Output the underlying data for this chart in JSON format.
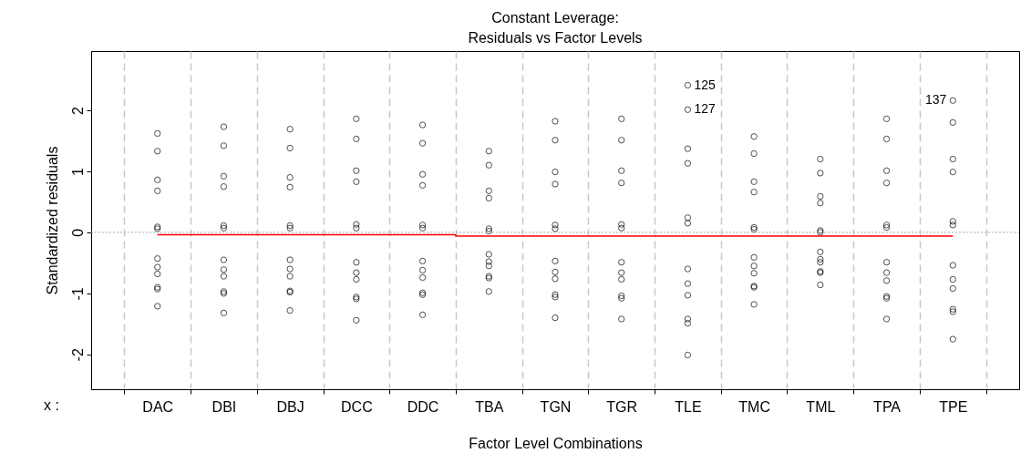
{
  "chart_data": {
    "type": "scatter",
    "title": "Constant Leverage:",
    "subtitle": "Residuals vs Factor Levels",
    "xlabel": "Factor Level Combinations",
    "ylabel": "Standardized residuals",
    "categories": [
      "DAC",
      "DBI",
      "DBJ",
      "DCC",
      "DDC",
      "TBA",
      "TGN",
      "TGR",
      "TLE",
      "TMC",
      "TML",
      "TPA",
      "TPE"
    ],
    "ylim": [
      -2.57,
      2.97
    ],
    "yticks": [
      -2,
      -1,
      0,
      1,
      2
    ],
    "grid": "x",
    "series": [
      {
        "color": "#000000",
        "marker": "circle",
        "x": [
          "DAC",
          "DAC",
          "DAC",
          "DAC",
          "DAC",
          "DAC",
          "DAC",
          "DAC",
          "DAC",
          "DAC",
          "DAC",
          "DAC",
          "DBI",
          "DBI",
          "DBI",
          "DBI",
          "DBI",
          "DBI",
          "DBI",
          "DBI",
          "DBI",
          "DBI",
          "DBI",
          "DBI",
          "DBJ",
          "DBJ",
          "DBJ",
          "DBJ",
          "DBJ",
          "DBJ",
          "DBJ",
          "DBJ",
          "DBJ",
          "DBJ",
          "DBJ",
          "DBJ",
          "DCC",
          "DCC",
          "DCC",
          "DCC",
          "DCC",
          "DCC",
          "DCC",
          "DCC",
          "DCC",
          "DCC",
          "DCC",
          "DCC",
          "DDC",
          "DDC",
          "DDC",
          "DDC",
          "DDC",
          "DDC",
          "DDC",
          "DDC",
          "DDC",
          "DDC",
          "DDC",
          "DDC",
          "TBA",
          "TBA",
          "TBA",
          "TBA",
          "TBA",
          "TBA",
          "TBA",
          "TBA",
          "TBA",
          "TBA",
          "TBA",
          "TBA",
          "TGN",
          "TGN",
          "TGN",
          "TGN",
          "TGN",
          "TGN",
          "TGN",
          "TGN",
          "TGN",
          "TGN",
          "TGN",
          "TGN",
          "TGR",
          "TGR",
          "TGR",
          "TGR",
          "TGR",
          "TGR",
          "TGR",
          "TGR",
          "TGR",
          "TGR",
          "TGR",
          "TGR",
          "TLE",
          "TLE",
          "TLE",
          "TLE",
          "TLE",
          "TLE",
          "TLE",
          "TLE",
          "TLE",
          "TLE",
          "TLE",
          "TLE",
          "TMC",
          "TMC",
          "TMC",
          "TMC",
          "TMC",
          "TMC",
          "TMC",
          "TMC",
          "TMC",
          "TMC",
          "TMC",
          "TMC",
          "TML",
          "TML",
          "TML",
          "TML",
          "TML",
          "TML",
          "TML",
          "TML",
          "TML",
          "TML",
          "TML",
          "TML",
          "TPA",
          "TPA",
          "TPA",
          "TPA",
          "TPA",
          "TPA",
          "TPA",
          "TPA",
          "TPA",
          "TPA",
          "TPA",
          "TPA",
          "TPE",
          "TPE",
          "TPE",
          "TPE",
          "TPE",
          "TPE",
          "TPE",
          "TPE",
          "TPE",
          "TPE",
          "TPE",
          "TPE"
        ],
        "values": [
          1.62,
          1.33,
          0.86,
          0.68,
          0.09,
          0.06,
          -0.43,
          -0.57,
          -0.68,
          -0.9,
          -0.93,
          -1.21,
          1.73,
          1.42,
          0.92,
          0.75,
          0.11,
          0.07,
          -0.45,
          -0.61,
          -0.72,
          -0.97,
          -1.0,
          -1.32,
          1.69,
          1.38,
          0.9,
          0.74,
          0.11,
          0.07,
          -0.45,
          -0.6,
          -0.72,
          -0.96,
          -0.98,
          -1.28,
          1.86,
          1.53,
          1.01,
          0.83,
          0.13,
          0.07,
          -0.49,
          -0.66,
          -0.77,
          -1.06,
          -1.09,
          -1.44,
          1.76,
          1.46,
          0.95,
          0.77,
          0.12,
          0.07,
          -0.47,
          -0.62,
          -0.74,
          -0.99,
          -1.02,
          -1.35,
          1.33,
          1.1,
          0.68,
          0.56,
          0.06,
          0.02,
          -0.36,
          -0.48,
          -0.55,
          -0.72,
          -0.75,
          -0.97,
          1.82,
          1.51,
          0.99,
          0.79,
          0.12,
          0.06,
          -0.47,
          -0.65,
          -0.76,
          -1.02,
          -1.06,
          -1.4,
          1.86,
          1.51,
          1.01,
          0.81,
          0.13,
          0.07,
          -0.49,
          -0.66,
          -0.77,
          -1.04,
          -1.08,
          -1.42,
          2.41,
          2.01,
          1.37,
          1.13,
          0.24,
          0.15,
          -0.6,
          -0.84,
          -1.03,
          -1.42,
          -1.49,
          -2.01,
          1.57,
          1.29,
          0.83,
          0.66,
          0.08,
          0.05,
          -0.41,
          -0.55,
          -0.67,
          -0.88,
          -0.9,
          -1.18,
          1.2,
          0.97,
          0.59,
          0.48,
          0.03,
          0.0,
          -0.32,
          -0.44,
          -0.49,
          -0.64,
          -0.66,
          -0.86,
          1.86,
          1.53,
          1.01,
          0.81,
          0.12,
          0.08,
          -0.49,
          -0.66,
          -0.79,
          -1.05,
          -1.08,
          -1.42,
          2.16,
          1.8,
          1.2,
          0.99,
          0.18,
          0.12,
          -0.54,
          -0.77,
          -0.92,
          -1.26,
          -1.3,
          -1.75
        ]
      },
      {
        "type": "step",
        "color": "#ff0000",
        "values": [
          -0.04,
          -0.04,
          -0.04,
          -0.04,
          -0.04,
          -0.06,
          -0.06,
          -0.06,
          -0.06,
          -0.06,
          -0.06,
          -0.06,
          -0.06
        ]
      }
    ],
    "ref_lines": [
      {
        "axis": "y",
        "value": 0,
        "color": "#aaaaaa",
        "line_style": "dotted"
      }
    ],
    "annotations": [
      {
        "text": "125",
        "x": "TLE",
        "y": 2.41
      },
      {
        "text": "127",
        "x": "TLE",
        "y": 2.01
      },
      {
        "text": "137",
        "x": "TPE",
        "y": 2.16
      },
      "x :"
    ]
  }
}
